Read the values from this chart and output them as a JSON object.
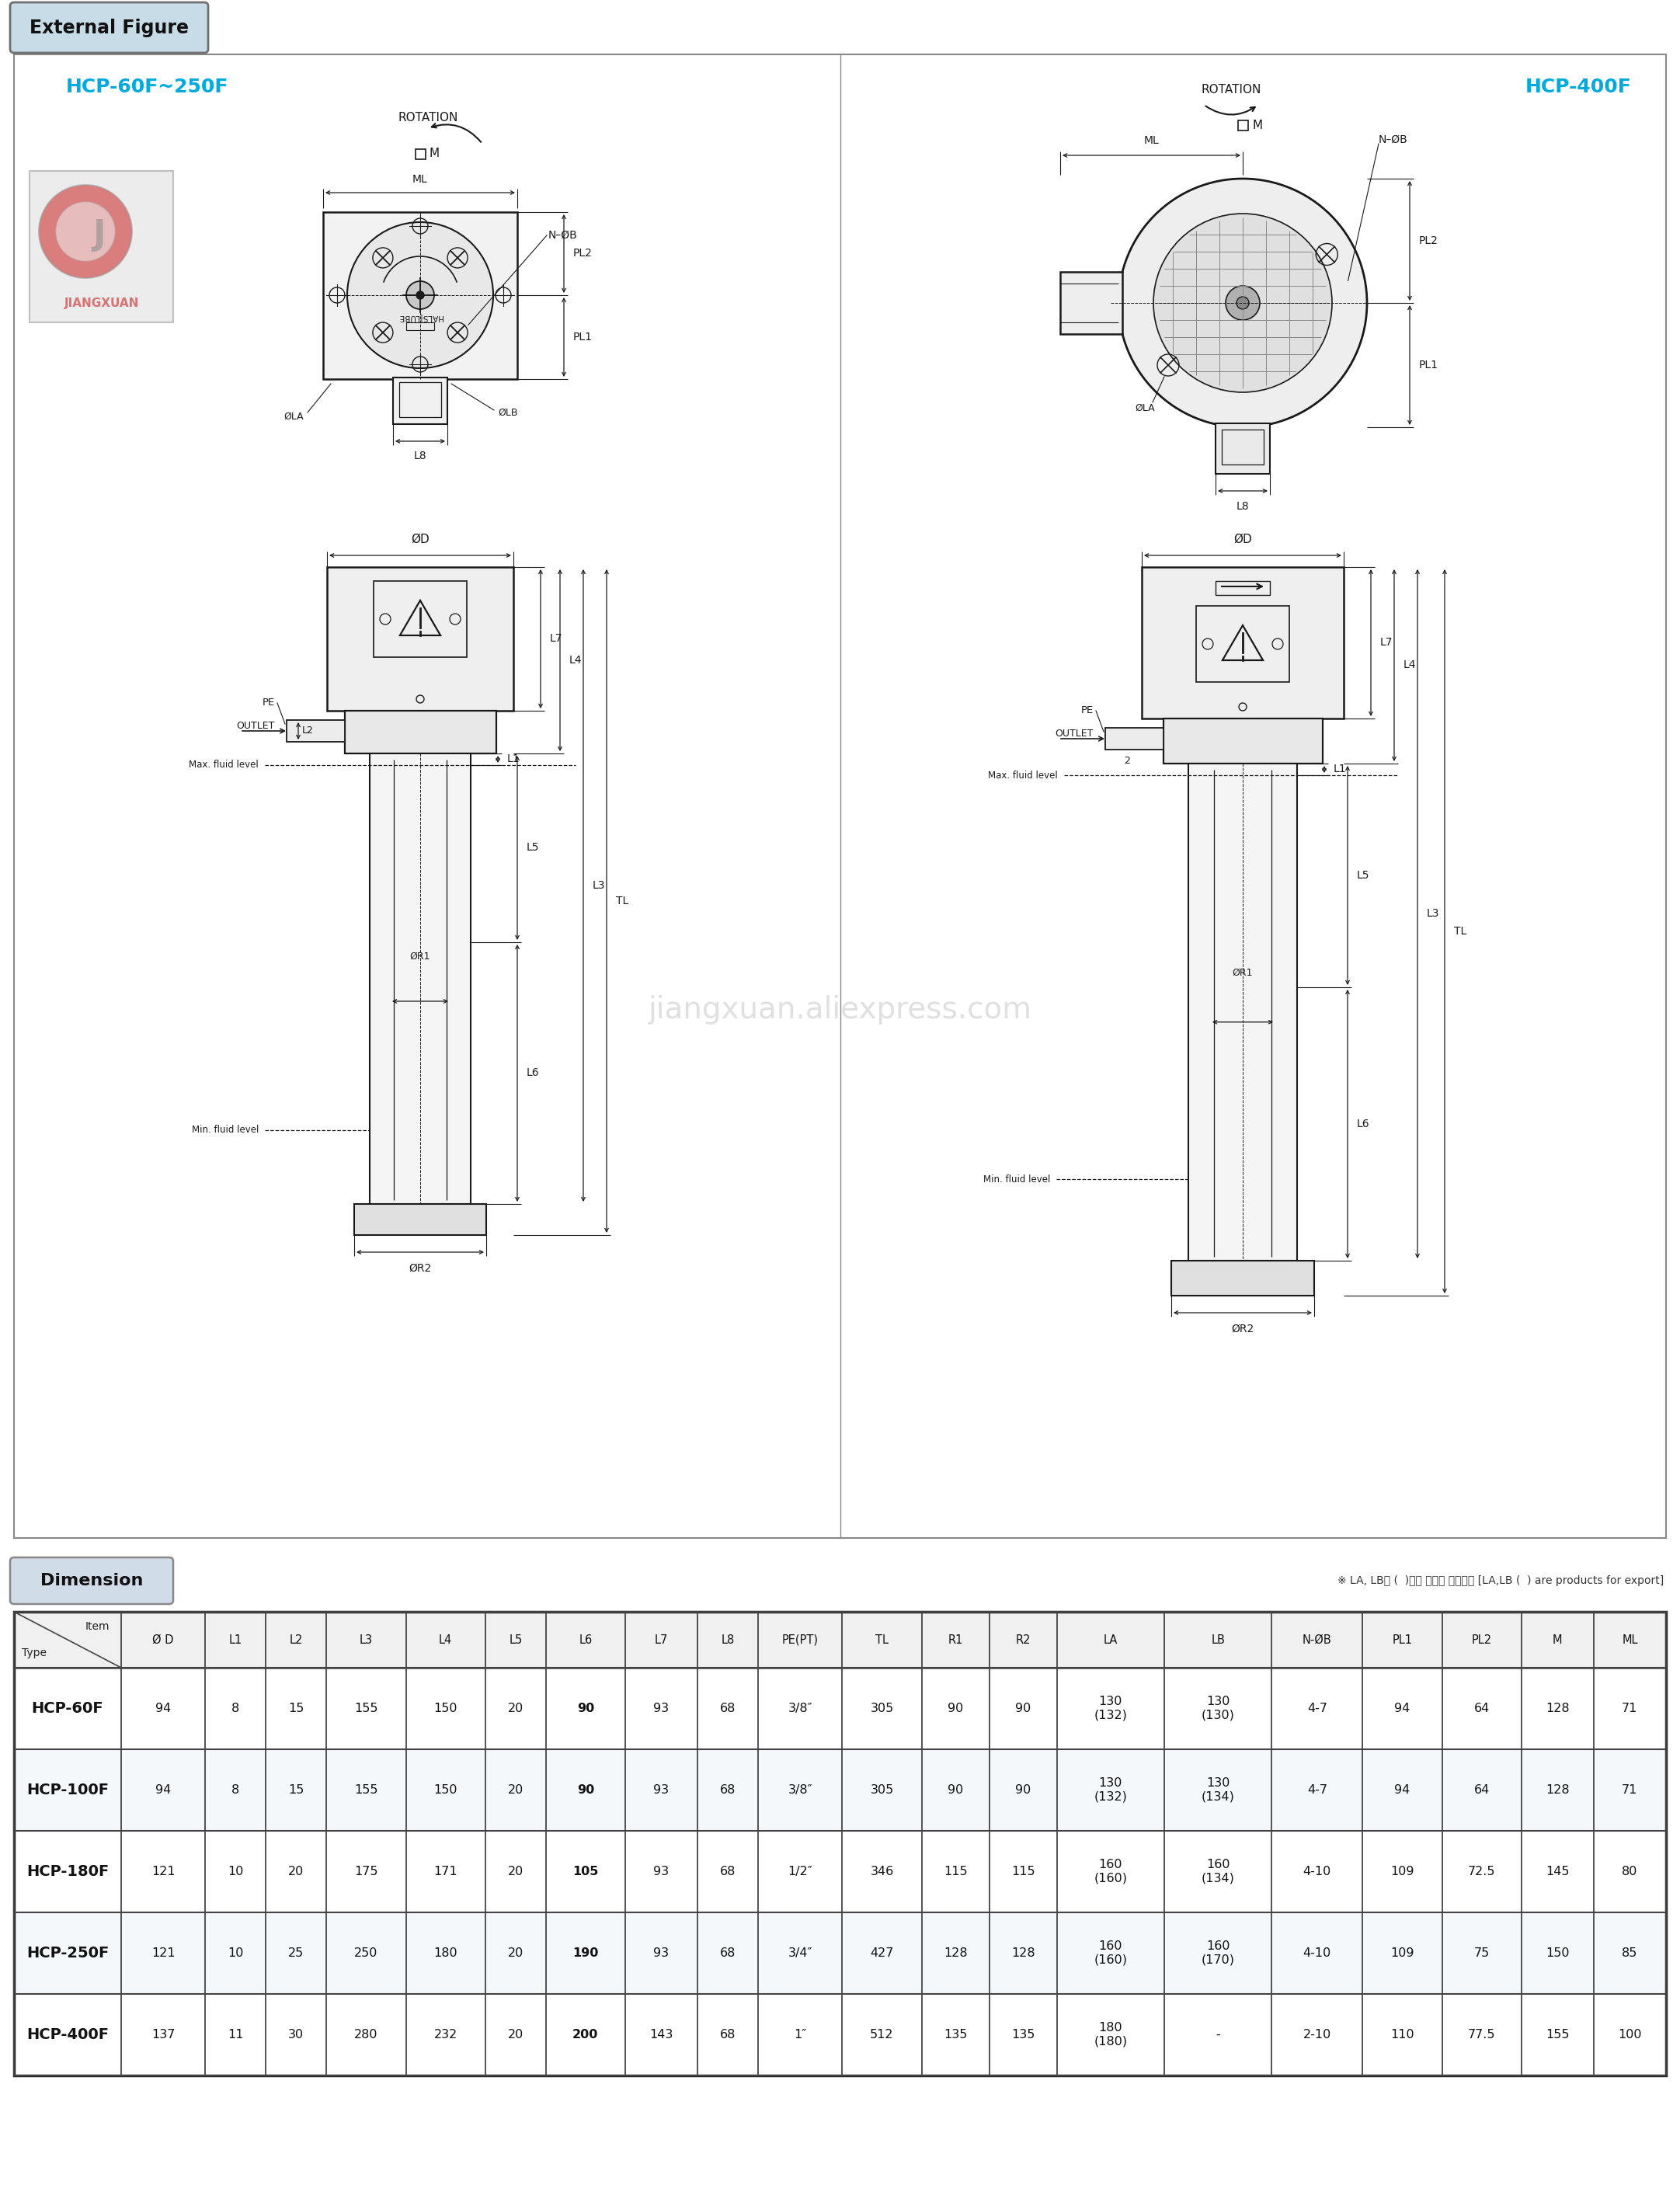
{
  "title_box": "External Figure",
  "title_box_bg": "#c8dce8",
  "title_box_border": "#808080",
  "page_bg": "#ffffff",
  "left_label": "HCP-60F~250F",
  "right_label": "HCP-400F",
  "label_color": "#00aadd",
  "dim_section_title": "Dimension",
  "dim_note": "※ LA, LB형 (  )안의 치수는 수쉦용임 [LA,LB (  ) are products for export]",
  "table_headers": [
    "Ø D",
    "L1",
    "L2",
    "L3",
    "L4",
    "L5",
    "L6",
    "L7",
    "L8",
    "PE(PT)",
    "TL",
    "R1",
    "R2",
    "LA",
    "LB",
    "N-ØB",
    "PL1",
    "PL2",
    "M",
    "ML"
  ],
  "table_rows": [
    [
      "HCP-60F",
      "94",
      "8",
      "15",
      "155",
      "150",
      "20",
      "90",
      "93",
      "68",
      "3/8″",
      "305",
      "90",
      "90",
      "130\n(132)",
      "130\n(130)",
      "4-7",
      "94",
      "64",
      "128",
      "71"
    ],
    [
      "HCP-100F",
      "94",
      "8",
      "15",
      "155",
      "150",
      "20",
      "90",
      "93",
      "68",
      "3/8″",
      "305",
      "90",
      "90",
      "130\n(132)",
      "130\n(134)",
      "4-7",
      "94",
      "64",
      "128",
      "71"
    ],
    [
      "HCP-180F",
      "121",
      "10",
      "20",
      "175",
      "171",
      "20",
      "105",
      "93",
      "68",
      "1/2″",
      "346",
      "115",
      "115",
      "160\n(160)",
      "160\n(134)",
      "4-10",
      "109",
      "72.5",
      "145",
      "80"
    ],
    [
      "HCP-250F",
      "121",
      "10",
      "25",
      "250",
      "180",
      "20",
      "190",
      "93",
      "68",
      "3/4″",
      "427",
      "128",
      "128",
      "160\n(160)",
      "160\n(170)",
      "4-10",
      "109",
      "75",
      "150",
      "85"
    ],
    [
      "HCP-400F",
      "137",
      "11",
      "30",
      "280",
      "232",
      "20",
      "200",
      "143",
      "68",
      "1″",
      "512",
      "135",
      "135",
      "180\n(180)",
      "-",
      "2-10",
      "110",
      "77.5",
      "155",
      "100"
    ]
  ],
  "watermark_text": "jiangxuan.aliexpress.com",
  "line_color": "#1a1a1a",
  "dim_line_color": "#1a1a1a"
}
